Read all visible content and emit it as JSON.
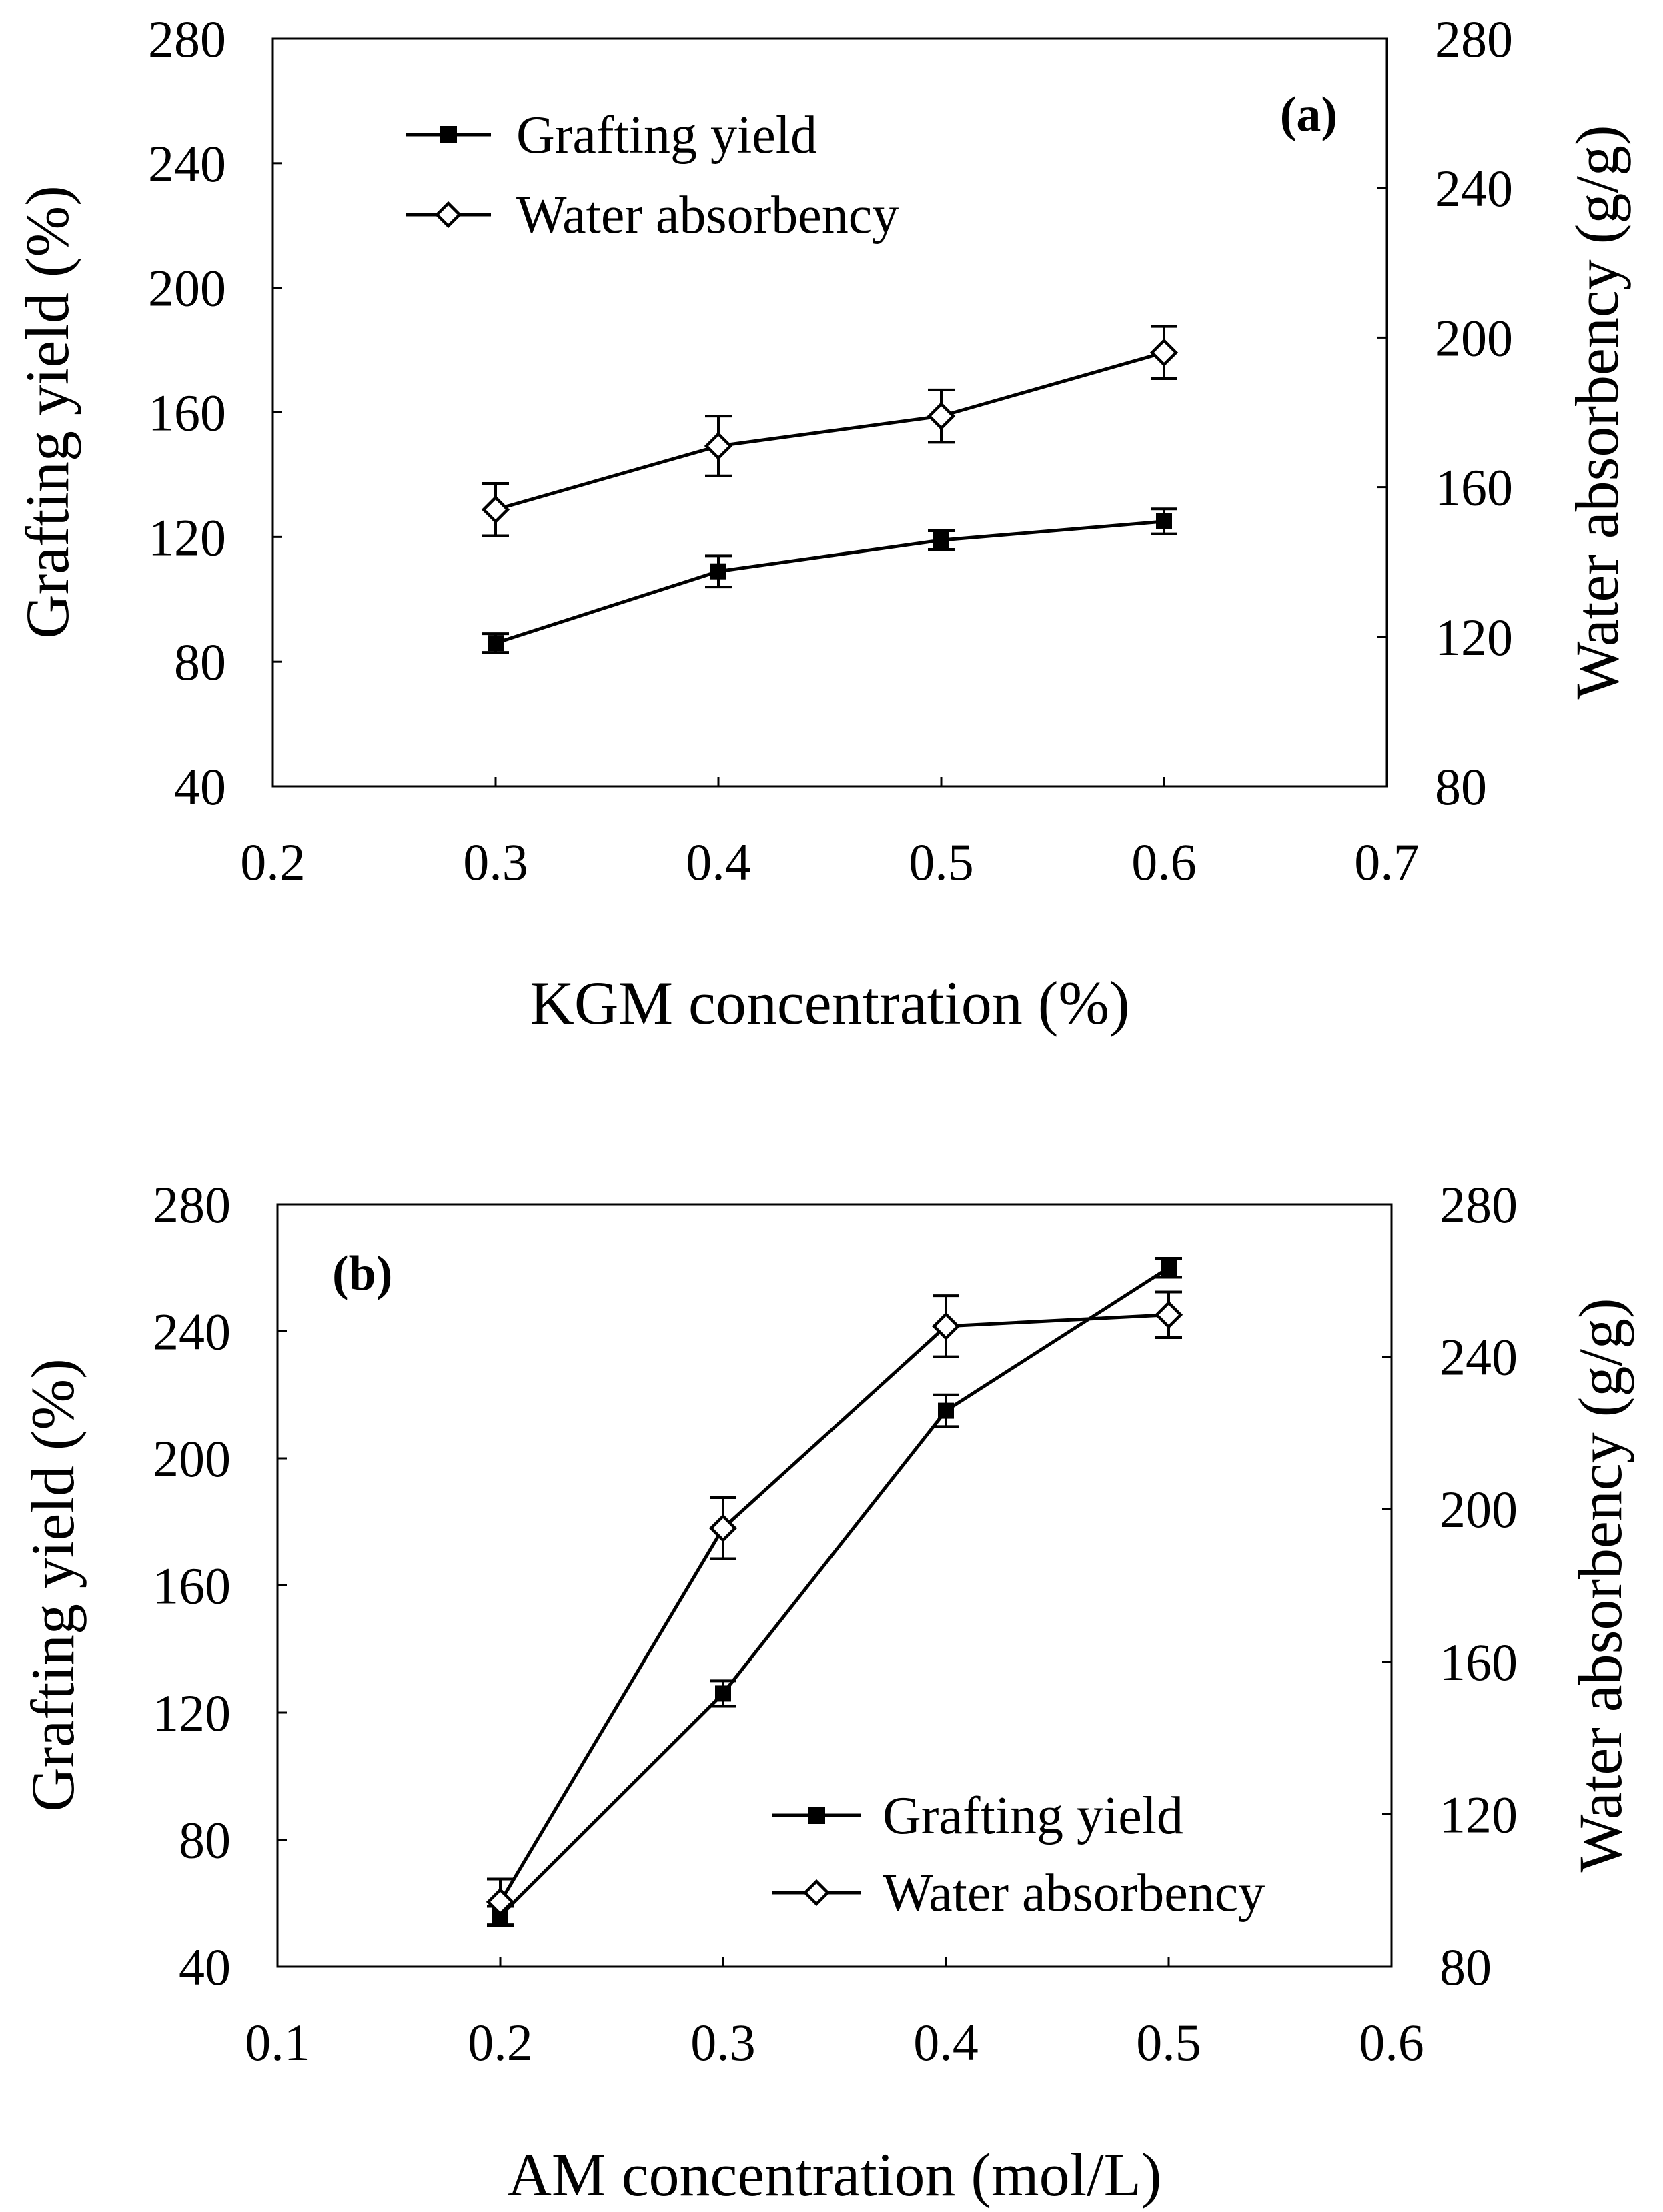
{
  "chart_data": [
    {
      "type": "line",
      "panel_label": "(a)",
      "xlabel": "KGM concentration (%)",
      "ylabel": "Grafting yield (%)",
      "y2label": "Water absorbency (g/g)",
      "xlim": [
        0.2,
        0.7
      ],
      "ylim": [
        40,
        280
      ],
      "y2lim": [
        80,
        280
      ],
      "x_ticks": [
        "0.2",
        "0.3",
        "0.4",
        "0.5",
        "0.6",
        "0.7"
      ],
      "y_ticks": [
        "40",
        "80",
        "120",
        "160",
        "200",
        "240",
        "280"
      ],
      "y2_ticks": [
        "80",
        "120",
        "160",
        "200",
        "240",
        "280"
      ],
      "grid": false,
      "legend_position": "top-left",
      "series": [
        {
          "name": "Grafting yield",
          "axis": "left",
          "marker": "square-filled",
          "x": [
            0.3,
            0.4,
            0.5,
            0.6
          ],
          "values": [
            86,
            109,
            119,
            125
          ],
          "errors": [
            3,
            5,
            3,
            4
          ]
        },
        {
          "name": "Water absorbency",
          "axis": "right",
          "marker": "diamond-open",
          "x": [
            0.3,
            0.4,
            0.5,
            0.6
          ],
          "values": [
            154,
            171,
            179,
            196
          ],
          "errors": [
            7,
            8,
            7,
            7
          ]
        }
      ]
    },
    {
      "type": "line",
      "panel_label": "(b)",
      "xlabel": "AM concentration (mol/L)",
      "ylabel": "Grafting yield (%)",
      "y2label": "Water absorbency (g/g)",
      "xlim": [
        0.1,
        0.6
      ],
      "ylim": [
        40,
        280
      ],
      "y2lim": [
        80,
        280
      ],
      "x_ticks": [
        "0.1",
        "0.2",
        "0.3",
        "0.4",
        "0.5",
        "0.6"
      ],
      "y_ticks": [
        "40",
        "80",
        "120",
        "160",
        "200",
        "240",
        "280"
      ],
      "y2_ticks": [
        "80",
        "120",
        "160",
        "200",
        "240",
        "280"
      ],
      "grid": false,
      "legend_position": "bottom-right",
      "series": [
        {
          "name": "Grafting yield",
          "axis": "left",
          "marker": "square-filled",
          "x": [
            0.2,
            0.3,
            0.4,
            0.5
          ],
          "values": [
            56,
            126,
            215,
            260
          ],
          "errors": [
            3,
            4,
            5,
            3
          ]
        },
        {
          "name": "Water absorbency",
          "axis": "right",
          "marker": "diamond-open",
          "x": [
            0.2,
            0.3,
            0.4,
            0.5
          ],
          "values": [
            97,
            195,
            248,
            251
          ],
          "errors": [
            6,
            8,
            8,
            6
          ]
        }
      ]
    }
  ]
}
